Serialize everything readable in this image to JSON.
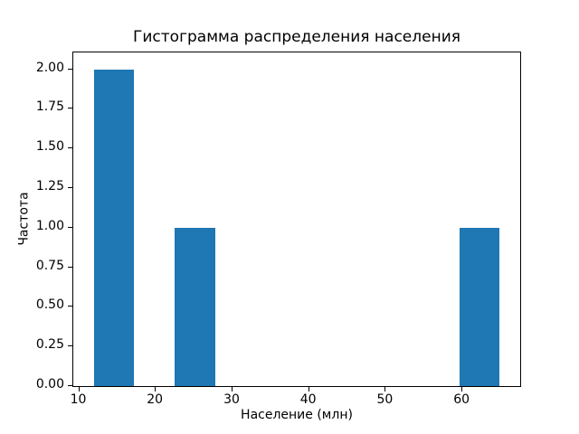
{
  "figure": {
    "title": "Гистограмма распределения населения",
    "xlabel": "Население (млн)",
    "ylabel": "Частота"
  },
  "colors": {
    "bar_fill": "#1f77b4",
    "axis": "#000000",
    "text": "#000000",
    "background": "#ffffff"
  },
  "chart_data": {
    "type": "bar",
    "subtype": "histogram",
    "title": "Гистограмма распределения населения",
    "xlabel": "Население (млн)",
    "ylabel": "Частота",
    "bin_edges": [
      12.0,
      17.3,
      22.6,
      27.9,
      33.2,
      38.5,
      43.8,
      49.1,
      54.4,
      59.7,
      65.0
    ],
    "counts": [
      2,
      0,
      1,
      0,
      0,
      0,
      0,
      0,
      0,
      1
    ],
    "bars": [
      {
        "x_start": 12.0,
        "x_end": 17.3,
        "height": 2
      },
      {
        "x_start": 22.6,
        "x_end": 27.9,
        "height": 1
      },
      {
        "x_start": 59.7,
        "x_end": 65.0,
        "height": 1
      }
    ],
    "x_ticks": [
      10,
      20,
      30,
      40,
      50,
      60
    ],
    "x_tick_labels": [
      "10",
      "20",
      "30",
      "40",
      "50",
      "60"
    ],
    "y_ticks": [
      0.0,
      0.25,
      0.5,
      0.75,
      1.0,
      1.25,
      1.5,
      1.75,
      2.0
    ],
    "y_tick_labels": [
      "0.00",
      "0.25",
      "0.50",
      "0.75",
      "1.00",
      "1.25",
      "1.50",
      "1.75",
      "2.00"
    ],
    "xlim": [
      9.35,
      67.65
    ],
    "ylim": [
      0,
      2.1
    ],
    "grid": false,
    "legend_position": "none",
    "bar_color": "#1f77b4"
  }
}
